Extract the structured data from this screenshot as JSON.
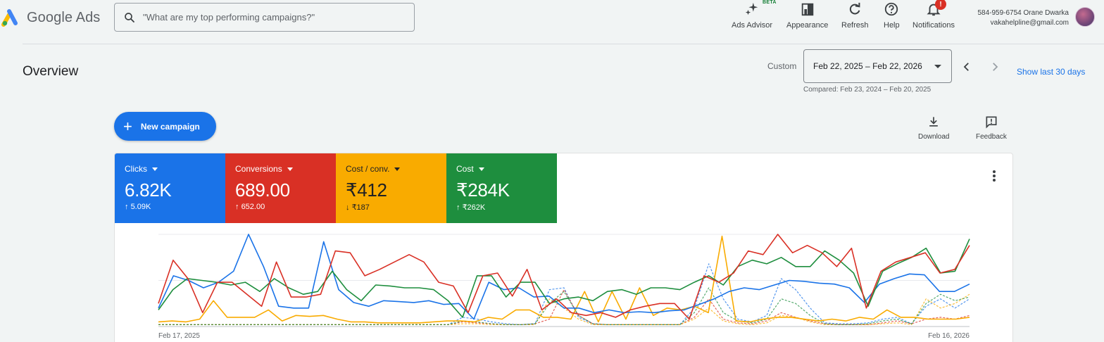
{
  "header": {
    "app_name": "Google Ads",
    "search": {
      "placeholder": "\"What are my top performing campaigns?\""
    },
    "tools": [
      {
        "label": "Ads Advisor",
        "icon": "sparkle-icon",
        "badge": "BETA"
      },
      {
        "label": "Appearance",
        "icon": "appearance-icon"
      },
      {
        "label": "Refresh",
        "icon": "refresh-icon"
      },
      {
        "label": "Help",
        "icon": "help-icon"
      },
      {
        "label": "Notifications",
        "icon": "bell-icon",
        "badge": "!"
      }
    ],
    "account": {
      "line1": "584-959-6754 Orane Dwarka",
      "email": "vakahelpline@gmail.com"
    }
  },
  "overview": {
    "title": "Overview",
    "date_mode": "Custom",
    "date_range": "Feb 22, 2025 – Feb 22, 2026",
    "compared": "Compared: Feb 23, 2024 – Feb 20, 2025",
    "show_last": "Show last 30 days",
    "new_campaign": "New campaign",
    "download": "Download",
    "feedback": "Feedback"
  },
  "kpis": [
    {
      "name": "Clicks",
      "value": "6.82K",
      "delta": "5.09K",
      "direction": "up",
      "color": "#1a73e8"
    },
    {
      "name": "Conversions",
      "value": "689.00",
      "delta": "652.00",
      "direction": "up",
      "color": "#d93025"
    },
    {
      "name": "Cost / conv.",
      "value": "₹412",
      "delta": "₹187",
      "direction": "down",
      "color": "#f9ab00"
    },
    {
      "name": "Cost",
      "value": "₹284K",
      "delta": "₹262K",
      "direction": "up",
      "color": "#1e8e3e"
    }
  ],
  "chart_data": {
    "type": "line",
    "x_start_label": "Feb 17, 2025",
    "x_end_label": "Feb 16, 2026",
    "grid": true,
    "y_max": 100,
    "series": [
      {
        "name": "Clicks",
        "color": "#1a73e8",
        "dashed": false,
        "values": [
          20,
          55,
          50,
          42,
          48,
          60,
          100,
          65,
          22,
          20,
          20,
          92,
          40,
          26,
          22,
          28,
          27,
          26,
          28,
          24,
          25,
          8,
          48,
          40,
          42,
          32,
          33,
          20,
          20,
          15,
          18,
          15,
          16,
          15,
          17,
          18,
          24,
          30,
          38,
          42,
          40,
          45,
          50,
          49,
          47,
          46,
          42,
          26,
          46,
          52,
          57,
          56,
          38,
          38,
          46
        ]
      },
      {
        "name": "Conversions",
        "color": "#d93025",
        "dashed": false,
        "values": [
          25,
          72,
          52,
          15,
          48,
          48,
          35,
          22,
          70,
          32,
          32,
          35,
          82,
          80,
          55,
          62,
          70,
          78,
          70,
          48,
          44,
          15,
          55,
          58,
          33,
          62,
          18,
          30,
          15,
          12,
          15,
          10,
          18,
          22,
          25,
          25,
          8,
          55,
          48,
          58,
          82,
          78,
          100,
          80,
          88,
          80,
          65,
          85,
          20,
          60,
          70,
          75,
          80,
          58,
          62,
          88
        ]
      },
      {
        "name": "Cost / conv.",
        "color": "#f9ab00",
        "dashed": false,
        "values": [
          5,
          6,
          5,
          8,
          28,
          10,
          10,
          10,
          18,
          6,
          12,
          11,
          12,
          8,
          5,
          5,
          4,
          4,
          4,
          4,
          5,
          6,
          6,
          5,
          10,
          8,
          18,
          18,
          10,
          10,
          8,
          38,
          5,
          38,
          8,
          42,
          12,
          20,
          18,
          22,
          15,
          98,
          6,
          5,
          8,
          10,
          10,
          8,
          6,
          8,
          6,
          10,
          8,
          18,
          10,
          10,
          8,
          8,
          8,
          10
        ]
      },
      {
        "name": "Cost",
        "color": "#1e8e3e",
        "dashed": false,
        "values": [
          18,
          40,
          52,
          50,
          48,
          45,
          48,
          38,
          52,
          42,
          35,
          38,
          60,
          40,
          28,
          45,
          44,
          42,
          42,
          40,
          28,
          10,
          55,
          55,
          32,
          48,
          48,
          25,
          30,
          32,
          28,
          38,
          40,
          35,
          42,
          42,
          40,
          48,
          55,
          45,
          65,
          72,
          68,
          75,
          65,
          65,
          82,
          72,
          58,
          22,
          60,
          68,
          75,
          85,
          58,
          60,
          95
        ]
      },
      {
        "name": "Clicks (previous)",
        "color": "#1a73e8",
        "dashed": true,
        "values": [
          2,
          2,
          2,
          2,
          2,
          2,
          2,
          2,
          2,
          2,
          2,
          2,
          2,
          2,
          2,
          2,
          2,
          2,
          2,
          2,
          2,
          10,
          8,
          5,
          3,
          2,
          3,
          40,
          42,
          10,
          3,
          2,
          2,
          2,
          2,
          2,
          2,
          20,
          68,
          30,
          8,
          5,
          12,
          52,
          40,
          20,
          4,
          3,
          3,
          4,
          8,
          10,
          3,
          22,
          30,
          20,
          30
        ]
      },
      {
        "name": "Conversions (previous)",
        "color": "#d93025",
        "dashed": true,
        "values": [
          2,
          2,
          2,
          2,
          2,
          2,
          2,
          2,
          2,
          2,
          2,
          2,
          2,
          2,
          2,
          2,
          2,
          2,
          2,
          2,
          2,
          5,
          4,
          3,
          2,
          2,
          3,
          8,
          40,
          12,
          3,
          2,
          2,
          2,
          2,
          2,
          2,
          10,
          30,
          8,
          4,
          3,
          6,
          15,
          10,
          6,
          3,
          2,
          2,
          2,
          4,
          6,
          3,
          8,
          10,
          8,
          12
        ]
      },
      {
        "name": "Cost / conv. (previous)",
        "color": "#f9ab00",
        "dashed": true,
        "values": [
          2,
          2,
          2,
          2,
          2,
          2,
          2,
          2,
          2,
          2,
          2,
          2,
          2,
          2,
          2,
          2,
          2,
          2,
          2,
          2,
          2,
          3,
          3,
          2,
          2,
          2,
          2,
          30,
          20,
          8,
          2,
          2,
          2,
          2,
          2,
          2,
          2,
          8,
          20,
          6,
          3,
          2,
          4,
          12,
          10,
          5,
          2,
          2,
          2,
          2,
          3,
          4,
          2,
          30,
          20,
          25,
          35
        ]
      },
      {
        "name": "Cost (previous)",
        "color": "#1e8e3e",
        "dashed": true,
        "values": [
          2,
          2,
          2,
          2,
          2,
          2,
          2,
          2,
          2,
          2,
          2,
          2,
          2,
          2,
          2,
          2,
          2,
          2,
          2,
          2,
          2,
          6,
          5,
          3,
          2,
          2,
          3,
          25,
          38,
          12,
          3,
          2,
          2,
          2,
          2,
          2,
          2,
          15,
          42,
          15,
          6,
          4,
          8,
          30,
          25,
          12,
          3,
          2,
          2,
          3,
          6,
          8,
          3,
          25,
          35,
          28,
          32
        ]
      }
    ]
  }
}
